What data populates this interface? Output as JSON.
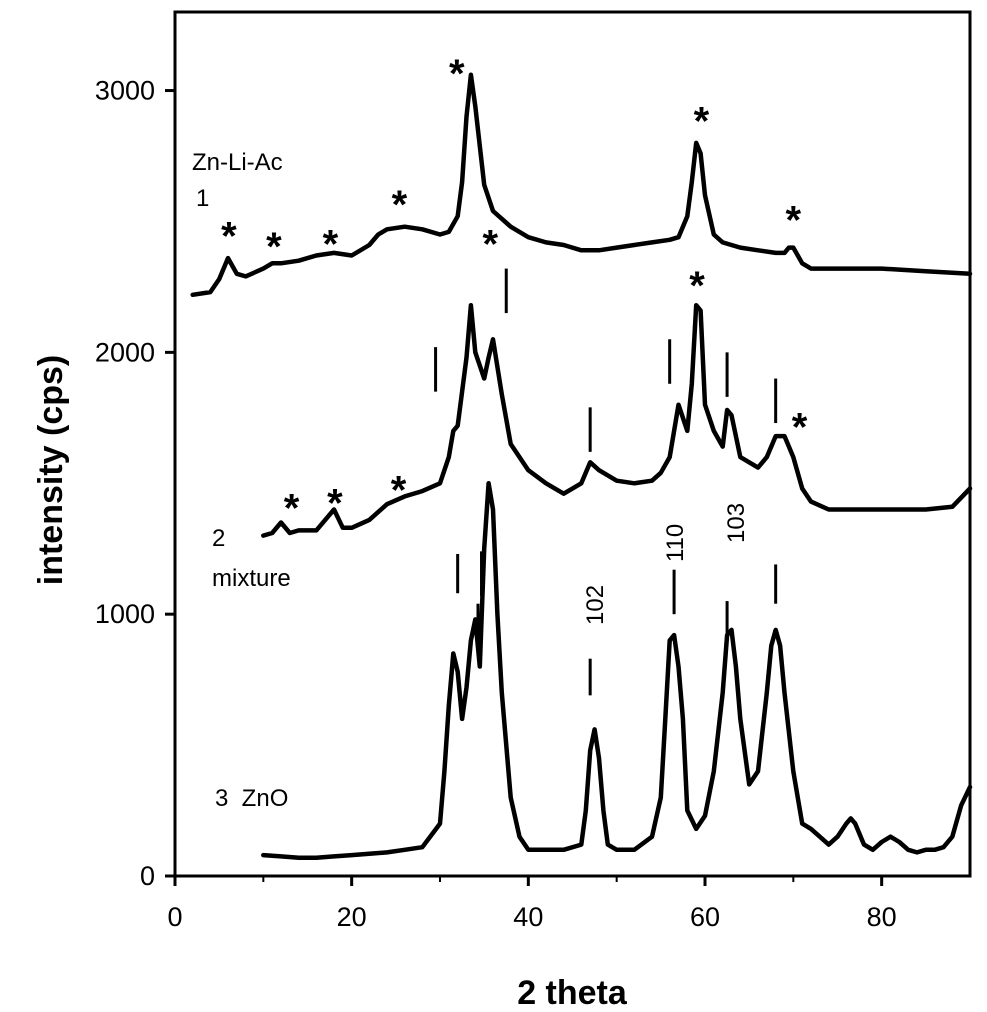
{
  "chart_data": {
    "type": "line",
    "title": "",
    "xlabel": "2 theta",
    "ylabel": "intensity (cps)",
    "xlim": [
      0,
      90
    ],
    "ylim": [
      0,
      3300
    ],
    "x_ticks": [
      0,
      20,
      40,
      60,
      80
    ],
    "x_tick_labels": [
      "0",
      "20",
      "40",
      "60",
      "80"
    ],
    "y_ticks": [
      0,
      1000,
      2000,
      3000
    ],
    "y_tick_labels": [
      "0",
      "1000",
      "2000",
      "3000"
    ],
    "grid": false,
    "legend": "none",
    "series": [
      {
        "name": "Zn-Li-Ac",
        "number_label": "1",
        "x": [
          2,
          4,
          5,
          6,
          7,
          8,
          10,
          11,
          12,
          14,
          16,
          18,
          20,
          22,
          23,
          24,
          26,
          28,
          30,
          31,
          32,
          32.5,
          33,
          33.5,
          34,
          35,
          36,
          38,
          40,
          42,
          44,
          46,
          48,
          50,
          52,
          54,
          56,
          57,
          58,
          58.5,
          59,
          59.5,
          60,
          61,
          62,
          64,
          66,
          68,
          69,
          69.5,
          70,
          71,
          72,
          76,
          80,
          85,
          90
        ],
        "y": [
          2220,
          2230,
          2280,
          2360,
          2300,
          2290,
          2320,
          2340,
          2340,
          2350,
          2370,
          2380,
          2370,
          2410,
          2450,
          2470,
          2480,
          2470,
          2450,
          2460,
          2520,
          2650,
          2900,
          3060,
          2940,
          2640,
          2540,
          2480,
          2440,
          2420,
          2410,
          2390,
          2390,
          2400,
          2410,
          2420,
          2430,
          2440,
          2520,
          2650,
          2800,
          2760,
          2600,
          2450,
          2420,
          2400,
          2390,
          2380,
          2380,
          2400,
          2400,
          2340,
          2320,
          2320,
          2320,
          2310,
          2300
        ]
      },
      {
        "name": "mixture",
        "number_label": "2",
        "x": [
          10,
          11,
          12,
          13,
          14,
          16,
          17,
          18,
          19,
          20,
          22,
          24,
          26,
          28,
          30,
          31,
          31.5,
          32,
          33,
          33.5,
          34,
          35,
          35.5,
          36,
          37,
          38,
          40,
          42,
          44,
          46,
          47,
          48,
          50,
          52,
          54,
          55,
          56,
          57,
          58,
          58.5,
          59,
          59.5,
          60,
          61,
          62,
          62.5,
          63,
          64,
          66,
          67,
          68,
          69,
          70,
          71,
          72,
          74,
          76,
          78,
          80,
          85,
          88,
          90
        ],
        "y": [
          1300,
          1310,
          1350,
          1310,
          1320,
          1320,
          1360,
          1400,
          1330,
          1330,
          1360,
          1420,
          1450,
          1470,
          1500,
          1600,
          1700,
          1720,
          1980,
          2180,
          2000,
          1900,
          1980,
          2050,
          1840,
          1650,
          1550,
          1500,
          1460,
          1500,
          1580,
          1550,
          1510,
          1500,
          1510,
          1540,
          1600,
          1800,
          1700,
          1880,
          2180,
          2160,
          1800,
          1700,
          1640,
          1780,
          1760,
          1600,
          1560,
          1600,
          1680,
          1680,
          1600,
          1480,
          1430,
          1400,
          1400,
          1400,
          1400,
          1400,
          1410,
          1480
        ]
      },
      {
        "name": "ZnO",
        "number_label": "3",
        "x": [
          10,
          12,
          14,
          16,
          18,
          20,
          22,
          24,
          26,
          28,
          30,
          30.5,
          31,
          31.5,
          32,
          32.5,
          33,
          33.5,
          34,
          34.5,
          35,
          35.5,
          36,
          36.5,
          37,
          38,
          39,
          40,
          42,
          44,
          46,
          46.5,
          47,
          47.5,
          48,
          48.5,
          49,
          50,
          52,
          54,
          55,
          55.5,
          56,
          56.5,
          57,
          57.5,
          58,
          59,
          60,
          61,
          62,
          62.5,
          63,
          63.5,
          64,
          65,
          66,
          67,
          67.5,
          68,
          68.5,
          69,
          70,
          71,
          72,
          73,
          74,
          75,
          76,
          76.5,
          77,
          78,
          79,
          80,
          81,
          82,
          83,
          84,
          85,
          86,
          87,
          88,
          89,
          90
        ],
        "y": [
          80,
          75,
          70,
          70,
          75,
          80,
          85,
          90,
          100,
          110,
          200,
          400,
          650,
          850,
          780,
          600,
          720,
          900,
          980,
          800,
          1250,
          1500,
          1400,
          1000,
          700,
          300,
          150,
          100,
          100,
          100,
          120,
          250,
          480,
          560,
          450,
          250,
          120,
          100,
          100,
          150,
          300,
          600,
          900,
          920,
          800,
          600,
          250,
          180,
          230,
          400,
          700,
          920,
          940,
          800,
          600,
          350,
          400,
          700,
          880,
          940,
          880,
          700,
          400,
          200,
          180,
          150,
          120,
          150,
          200,
          220,
          200,
          120,
          100,
          130,
          150,
          130,
          100,
          90,
          100,
          100,
          110,
          150,
          270,
          340
        ]
      }
    ],
    "annotations": {
      "series_label_1_title": "Zn-Li-Ac",
      "series_label_1_num": "1",
      "series_label_2_num": "2",
      "series_label_2_title": "mixture",
      "series_label_3": "3  ZnO",
      "peak_labels": [
        "102",
        "110",
        "103"
      ],
      "star": "*"
    }
  }
}
